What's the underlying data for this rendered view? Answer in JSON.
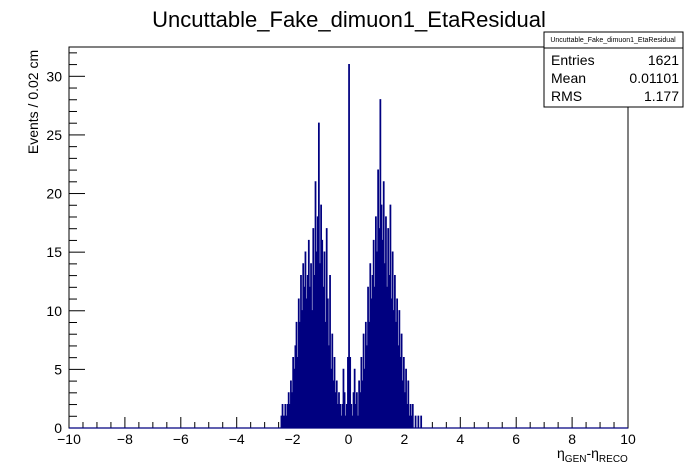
{
  "chart_data": {
    "type": "bar",
    "title": "Uncuttable_Fake_dimuon1_EtaResidual",
    "ylabel": "Events / 0.02 cm",
    "xlabel_main": "η",
    "xlabel_sub1": "GEN",
    "xlabel_mid": "-η",
    "xlabel_sub2": "RECO",
    "xlim": [
      -10,
      10
    ],
    "ylim": [
      0,
      32.5
    ],
    "x_ticks": [
      "−10",
      "−8",
      "−6",
      "−4",
      "−2",
      "0",
      "2",
      "4",
      "6",
      "8",
      "10"
    ],
    "y_ticks": [
      "0",
      "5",
      "10",
      "15",
      "20",
      "25",
      "30"
    ],
    "bin_width": 0.02,
    "line_color": "#000080",
    "bins": [
      [
        -2.4,
        1
      ],
      [
        -2.36,
        2
      ],
      [
        -2.3,
        1
      ],
      [
        -2.26,
        2
      ],
      [
        -2.22,
        1
      ],
      [
        -2.18,
        2
      ],
      [
        -2.14,
        3
      ],
      [
        -2.1,
        2
      ],
      [
        -2.06,
        4
      ],
      [
        -2.02,
        3
      ],
      [
        -1.98,
        6
      ],
      [
        -1.94,
        5
      ],
      [
        -1.9,
        7
      ],
      [
        -1.86,
        9
      ],
      [
        -1.82,
        6
      ],
      [
        -1.78,
        11
      ],
      [
        -1.74,
        9
      ],
      [
        -1.7,
        13
      ],
      [
        -1.66,
        10
      ],
      [
        -1.62,
        14
      ],
      [
        -1.58,
        12
      ],
      [
        -1.54,
        15
      ],
      [
        -1.5,
        11
      ],
      [
        -1.46,
        13
      ],
      [
        -1.42,
        16
      ],
      [
        -1.38,
        12
      ],
      [
        -1.34,
        14
      ],
      [
        -1.3,
        10
      ],
      [
        -1.26,
        17
      ],
      [
        -1.22,
        13
      ],
      [
        -1.18,
        21
      ],
      [
        -1.14,
        15
      ],
      [
        -1.1,
        18
      ],
      [
        -1.06,
        26
      ],
      [
        -1.02,
        14
      ],
      [
        -0.98,
        19
      ],
      [
        -0.94,
        16
      ],
      [
        -0.9,
        12
      ],
      [
        -0.86,
        15
      ],
      [
        -0.82,
        9
      ],
      [
        -0.78,
        17
      ],
      [
        -0.74,
        11
      ],
      [
        -0.7,
        7
      ],
      [
        -0.66,
        13
      ],
      [
        -0.62,
        5
      ],
      [
        -0.58,
        8
      ],
      [
        -0.54,
        4
      ],
      [
        -0.5,
        6
      ],
      [
        -0.46,
        3
      ],
      [
        -0.42,
        4
      ],
      [
        -0.38,
        2
      ],
      [
        -0.34,
        3
      ],
      [
        -0.3,
        2
      ],
      [
        -0.26,
        1
      ],
      [
        -0.22,
        2
      ],
      [
        -0.18,
        5
      ],
      [
        -0.14,
        3
      ],
      [
        -0.1,
        1
      ],
      [
        -0.06,
        2
      ],
      [
        -0.02,
        6
      ],
      [
        0.02,
        31
      ],
      [
        0.06,
        6
      ],
      [
        0.1,
        2
      ],
      [
        0.14,
        1
      ],
      [
        0.18,
        3
      ],
      [
        0.22,
        5
      ],
      [
        0.26,
        2
      ],
      [
        0.3,
        3
      ],
      [
        0.34,
        1
      ],
      [
        0.38,
        4
      ],
      [
        0.42,
        3
      ],
      [
        0.46,
        6
      ],
      [
        0.5,
        4
      ],
      [
        0.54,
        8
      ],
      [
        0.58,
        5
      ],
      [
        0.62,
        9
      ],
      [
        0.66,
        7
      ],
      [
        0.7,
        12
      ],
      [
        0.74,
        9
      ],
      [
        0.78,
        14
      ],
      [
        0.82,
        11
      ],
      [
        0.86,
        13
      ],
      [
        0.9,
        16
      ],
      [
        0.94,
        12
      ],
      [
        0.98,
        18
      ],
      [
        1.02,
        15
      ],
      [
        1.06,
        22
      ],
      [
        1.1,
        17
      ],
      [
        1.14,
        28
      ],
      [
        1.18,
        19
      ],
      [
        1.22,
        16
      ],
      [
        1.26,
        21
      ],
      [
        1.3,
        14
      ],
      [
        1.34,
        18
      ],
      [
        1.38,
        12
      ],
      [
        1.42,
        17
      ],
      [
        1.46,
        13
      ],
      [
        1.5,
        19
      ],
      [
        1.54,
        11
      ],
      [
        1.58,
        15
      ],
      [
        1.62,
        10
      ],
      [
        1.66,
        13
      ],
      [
        1.7,
        9
      ],
      [
        1.74,
        11
      ],
      [
        1.78,
        7
      ],
      [
        1.82,
        10
      ],
      [
        1.86,
        6
      ],
      [
        1.9,
        8
      ],
      [
        1.94,
        4
      ],
      [
        1.98,
        6
      ],
      [
        2.02,
        3
      ],
      [
        2.06,
        5
      ],
      [
        2.1,
        2
      ],
      [
        2.14,
        4
      ],
      [
        2.18,
        1
      ],
      [
        2.22,
        2
      ],
      [
        2.26,
        1
      ],
      [
        2.3,
        2
      ],
      [
        2.4,
        1
      ],
      [
        2.5,
        1
      ],
      [
        2.6,
        1
      ]
    ],
    "stats": {
      "title": "Uncuttable_Fake_dimuon1_EtaResidual",
      "rows": [
        {
          "label": "Entries",
          "value": "1621"
        },
        {
          "label": "Mean",
          "value": "0.01101"
        },
        {
          "label": "RMS",
          "value": "1.177"
        }
      ]
    }
  }
}
